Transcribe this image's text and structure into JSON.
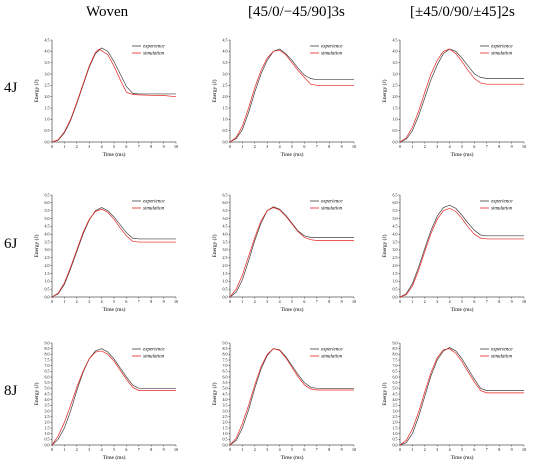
{
  "column_titles": [
    "Woven",
    "[45/0/−45/90]3s",
    "[±45/0/90/±45]2s"
  ],
  "row_labels": [
    "4J",
    "6J",
    "8J"
  ],
  "colors": {
    "experience": "#404040",
    "simulation": "#e8231f",
    "axis": "#000000"
  },
  "chart_data": [
    {
      "type": "line",
      "row": "4J",
      "column": "Woven",
      "xlabel": "Time (ms)",
      "ylabel": "Energy (J)",
      "xlim": [
        0,
        10
      ],
      "ylim": [
        0,
        4.5
      ],
      "xticks": [
        0,
        1,
        2,
        3,
        4,
        5,
        6,
        7,
        8,
        9,
        10
      ],
      "yticks": [
        0,
        0.5,
        1.0,
        1.5,
        2.0,
        2.5,
        3.0,
        3.5,
        4.0,
        4.5
      ],
      "series": [
        {
          "name": "experience",
          "x": [
            0,
            0.5,
            1,
            1.5,
            2,
            2.5,
            3,
            3.5,
            4,
            4.5,
            5,
            5.5,
            6,
            6.5,
            7,
            8,
            9,
            10
          ],
          "y": [
            0,
            0.08,
            0.4,
            0.95,
            1.7,
            2.5,
            3.3,
            3.9,
            4.15,
            4.0,
            3.55,
            3.0,
            2.45,
            2.15,
            2.12,
            2.12,
            2.12,
            2.12
          ]
        },
        {
          "name": "simulation",
          "x": [
            0,
            0.5,
            1,
            1.5,
            2,
            2.5,
            3,
            3.5,
            3.8,
            4.5,
            5,
            5.5,
            6,
            6.5,
            7,
            8,
            9,
            10
          ],
          "y": [
            0,
            0.1,
            0.45,
            1.0,
            1.75,
            2.55,
            3.35,
            3.95,
            4.1,
            3.85,
            3.35,
            2.75,
            2.2,
            2.1,
            2.08,
            2.06,
            2.05,
            2.0
          ]
        }
      ]
    },
    {
      "type": "line",
      "row": "4J",
      "column": "[45/0/−45/90]3s",
      "xlabel": "Time (ms)",
      "ylabel": "Energy (J)",
      "xlim": [
        0,
        10
      ],
      "ylim": [
        0,
        4.5
      ],
      "xticks": [
        0,
        1,
        2,
        3,
        4,
        5,
        6,
        7,
        8,
        9,
        10
      ],
      "yticks": [
        0,
        0.5,
        1.0,
        1.5,
        2.0,
        2.5,
        3.0,
        3.5,
        4.0,
        4.5
      ],
      "series": [
        {
          "name": "experience",
          "x": [
            0,
            0.5,
            1,
            1.5,
            2,
            2.5,
            3,
            3.5,
            4,
            4.5,
            5,
            5.5,
            6,
            6.5,
            7,
            8,
            9,
            10
          ],
          "y": [
            0,
            0.15,
            0.55,
            1.3,
            2.2,
            3.0,
            3.6,
            4.0,
            4.1,
            3.9,
            3.6,
            3.25,
            2.95,
            2.8,
            2.75,
            2.75,
            2.75,
            2.75
          ]
        },
        {
          "name": "simulation",
          "x": [
            0,
            0.5,
            1,
            1.5,
            2,
            2.5,
            3,
            3.5,
            4,
            4.5,
            5,
            5.5,
            6,
            6.5,
            7,
            8,
            9,
            10
          ],
          "y": [
            0,
            0.2,
            0.7,
            1.5,
            2.4,
            3.15,
            3.7,
            4.0,
            4.05,
            3.85,
            3.5,
            3.15,
            2.85,
            2.55,
            2.5,
            2.5,
            2.5,
            2.5
          ]
        }
      ]
    },
    {
      "type": "line",
      "row": "4J",
      "column": "[±45/0/90/±45]2s",
      "xlabel": "Time (ms)",
      "ylabel": "Energy (J)",
      "xlim": [
        0,
        10
      ],
      "ylim": [
        0,
        4.5
      ],
      "xticks": [
        0,
        1,
        2,
        3,
        4,
        5,
        6,
        7,
        8,
        9,
        10
      ],
      "yticks": [
        0,
        0.5,
        1.0,
        1.5,
        2.0,
        2.5,
        3.0,
        3.5,
        4.0,
        4.5
      ],
      "series": [
        {
          "name": "experience",
          "x": [
            0,
            0.5,
            1,
            1.5,
            2,
            2.5,
            3,
            3.5,
            4,
            4.5,
            5,
            5.5,
            6,
            6.5,
            7,
            8,
            9,
            10
          ],
          "y": [
            0,
            0.12,
            0.5,
            1.15,
            1.95,
            2.75,
            3.4,
            3.9,
            4.1,
            4.0,
            3.7,
            3.35,
            3.0,
            2.85,
            2.8,
            2.8,
            2.8,
            2.8
          ]
        },
        {
          "name": "simulation",
          "x": [
            0,
            0.5,
            1,
            1.5,
            2,
            2.5,
            3,
            3.5,
            4,
            4.5,
            5,
            5.5,
            6,
            6.5,
            7,
            8,
            9,
            10
          ],
          "y": [
            0,
            0.18,
            0.65,
            1.35,
            2.2,
            3.0,
            3.6,
            4.0,
            4.1,
            3.9,
            3.55,
            3.15,
            2.8,
            2.6,
            2.55,
            2.55,
            2.55,
            2.55
          ]
        }
      ]
    },
    {
      "type": "line",
      "row": "6J",
      "column": "Woven",
      "xlabel": "Time (ms)",
      "ylabel": "Energy (J)",
      "xlim": [
        0,
        10
      ],
      "ylim": [
        0,
        6.5
      ],
      "xticks": [
        0,
        1,
        2,
        3,
        4,
        5,
        6,
        7,
        8,
        9,
        10
      ],
      "yticks": [
        0,
        0.5,
        1.0,
        1.5,
        2.0,
        2.5,
        3.0,
        3.5,
        4.0,
        4.5,
        5.0,
        5.5,
        6.0,
        6.5
      ],
      "series": [
        {
          "name": "experience",
          "x": [
            0,
            0.5,
            1,
            1.5,
            2,
            2.5,
            3,
            3.5,
            4,
            4.5,
            5,
            5.5,
            6,
            6.5,
            7,
            8,
            9,
            10
          ],
          "y": [
            0,
            0.2,
            0.8,
            1.8,
            2.9,
            4.0,
            4.9,
            5.5,
            5.7,
            5.5,
            5.1,
            4.6,
            4.1,
            3.75,
            3.7,
            3.7,
            3.7,
            3.7
          ]
        },
        {
          "name": "simulation",
          "x": [
            0,
            0.5,
            1,
            1.5,
            2,
            2.5,
            3,
            3.5,
            4,
            4.5,
            5,
            5.5,
            6,
            6.5,
            7,
            8,
            9,
            10
          ],
          "y": [
            0,
            0.25,
            0.9,
            1.9,
            3.0,
            4.1,
            4.95,
            5.45,
            5.6,
            5.4,
            4.95,
            4.4,
            3.9,
            3.55,
            3.5,
            3.5,
            3.5,
            3.5
          ]
        }
      ]
    },
    {
      "type": "line",
      "row": "6J",
      "column": "[45/0/−45/90]3s",
      "xlabel": "Time (ms)",
      "ylabel": "Energy (J)",
      "xlim": [
        0,
        10
      ],
      "ylim": [
        0,
        6.5
      ],
      "xticks": [
        0,
        1,
        2,
        3,
        4,
        5,
        6,
        7,
        8,
        9,
        10
      ],
      "yticks": [
        0,
        0.5,
        1.0,
        1.5,
        2.0,
        2.5,
        3.0,
        3.5,
        4.0,
        4.5,
        5.0,
        5.5,
        6.0,
        6.5
      ],
      "series": [
        {
          "name": "experience",
          "x": [
            0,
            0.5,
            1,
            1.5,
            2,
            2.5,
            3,
            3.5,
            4,
            4.5,
            5,
            5.5,
            6,
            6.5,
            7,
            8,
            9,
            10
          ],
          "y": [
            0,
            0.3,
            1.1,
            2.3,
            3.6,
            4.7,
            5.5,
            5.75,
            5.6,
            5.2,
            4.7,
            4.2,
            3.9,
            3.8,
            3.8,
            3.8,
            3.8,
            3.8
          ]
        },
        {
          "name": "simulation",
          "x": [
            0,
            0.5,
            1,
            1.5,
            2,
            2.5,
            3,
            3.5,
            4,
            4.5,
            5,
            5.5,
            6,
            6.5,
            7,
            8,
            9,
            10
          ],
          "y": [
            0,
            0.5,
            1.4,
            2.6,
            3.8,
            4.85,
            5.5,
            5.7,
            5.55,
            5.15,
            4.65,
            4.15,
            3.8,
            3.65,
            3.6,
            3.6,
            3.6,
            3.6
          ]
        }
      ]
    },
    {
      "type": "line",
      "row": "6J",
      "column": "[±45/0/90/±45]2s",
      "xlabel": "Time (ms)",
      "ylabel": "Energy (J)",
      "xlim": [
        0,
        10
      ],
      "ylim": [
        0,
        6.5
      ],
      "xticks": [
        0,
        1,
        2,
        3,
        4,
        5,
        6,
        7,
        8,
        9,
        10
      ],
      "yticks": [
        0,
        0.5,
        1.0,
        1.5,
        2.0,
        2.5,
        3.0,
        3.5,
        4.0,
        4.5,
        5.0,
        5.5,
        6.0,
        6.5
      ],
      "series": [
        {
          "name": "experience",
          "x": [
            0,
            0.5,
            1,
            1.5,
            2,
            2.5,
            3,
            3.5,
            4,
            4.5,
            5,
            5.5,
            6,
            6.5,
            7,
            8,
            9,
            10
          ],
          "y": [
            0,
            0.2,
            0.85,
            1.9,
            3.1,
            4.25,
            5.15,
            5.7,
            5.85,
            5.65,
            5.2,
            4.7,
            4.25,
            3.95,
            3.9,
            3.9,
            3.9,
            3.9
          ]
        },
        {
          "name": "simulation",
          "x": [
            0,
            0.5,
            1,
            1.5,
            2,
            2.5,
            3,
            3.5,
            4,
            4.5,
            5,
            5.5,
            6,
            6.5,
            7,
            8,
            9,
            10
          ],
          "y": [
            0,
            0.15,
            0.7,
            1.7,
            2.9,
            4.05,
            4.95,
            5.5,
            5.65,
            5.45,
            5.0,
            4.45,
            4.0,
            3.75,
            3.7,
            3.7,
            3.7,
            3.7
          ]
        }
      ]
    },
    {
      "type": "line",
      "row": "8J",
      "column": "Woven",
      "xlabel": "Time (ms)",
      "ylabel": "Energy (J)",
      "xlim": [
        0,
        10
      ],
      "ylim": [
        0,
        9.0
      ],
      "xticks": [
        0,
        1,
        2,
        3,
        4,
        5,
        6,
        7,
        8,
        9,
        10
      ],
      "yticks": [
        0,
        0.5,
        1.0,
        1.5,
        2.0,
        2.5,
        3.0,
        3.5,
        4.0,
        4.5,
        5.0,
        5.5,
        6.0,
        6.5,
        7.0,
        7.5,
        8.0,
        8.5,
        9.0
      ],
      "series": [
        {
          "name": "experience",
          "x": [
            0,
            0.5,
            1,
            1.5,
            2,
            2.5,
            3,
            3.5,
            4,
            4.5,
            5,
            5.5,
            6,
            6.5,
            7,
            8,
            9,
            10
          ],
          "y": [
            0,
            0.5,
            1.5,
            3.0,
            4.8,
            6.4,
            7.6,
            8.3,
            8.5,
            8.2,
            7.6,
            6.8,
            6.0,
            5.3,
            5.0,
            5.0,
            5.0,
            5.0
          ]
        },
        {
          "name": "simulation",
          "x": [
            0,
            0.5,
            1,
            1.5,
            2,
            2.5,
            3,
            3.5,
            4,
            4.5,
            5,
            5.5,
            6,
            6.5,
            7,
            8,
            9,
            10
          ],
          "y": [
            0,
            0.8,
            2.0,
            3.5,
            5.1,
            6.5,
            7.6,
            8.2,
            8.3,
            8.0,
            7.4,
            6.6,
            5.8,
            5.1,
            4.8,
            4.8,
            4.8,
            4.8
          ]
        }
      ]
    },
    {
      "type": "line",
      "row": "8J",
      "column": "[45/0/−45/90]3s",
      "xlabel": "Time (ms)",
      "ylabel": "Energy (J)",
      "xlim": [
        0,
        10
      ],
      "ylim": [
        0,
        9.0
      ],
      "xticks": [
        0,
        1,
        2,
        3,
        4,
        5,
        6,
        7,
        8,
        9,
        10
      ],
      "yticks": [
        0,
        0.5,
        1.0,
        1.5,
        2.0,
        2.5,
        3.0,
        3.5,
        4.0,
        4.5,
        5.0,
        5.5,
        6.0,
        6.5,
        7.0,
        7.5,
        8.0,
        8.5,
        9.0
      ],
      "series": [
        {
          "name": "experience",
          "x": [
            0,
            0.5,
            1,
            1.5,
            2,
            2.5,
            3,
            3.5,
            4,
            4.5,
            5,
            5.5,
            6,
            6.5,
            7,
            8,
            9,
            10
          ],
          "y": [
            0,
            0.4,
            1.5,
            3.1,
            5.0,
            6.7,
            7.9,
            8.5,
            8.4,
            7.8,
            7.0,
            6.2,
            5.5,
            5.1,
            5.0,
            5.0,
            5.0,
            5.0
          ]
        },
        {
          "name": "simulation",
          "x": [
            0,
            0.5,
            1,
            1.5,
            2,
            2.5,
            3,
            3.5,
            4,
            4.5,
            5,
            5.5,
            6,
            6.5,
            7,
            8,
            9,
            10
          ],
          "y": [
            0,
            0.6,
            1.9,
            3.5,
            5.3,
            6.9,
            8.0,
            8.5,
            8.35,
            7.7,
            6.85,
            6.0,
            5.3,
            4.95,
            4.85,
            4.85,
            4.85,
            4.85
          ]
        }
      ]
    },
    {
      "type": "line",
      "row": "8J",
      "column": "[±45/0/90/±45]2s",
      "xlabel": "Time (ms)",
      "ylabel": "Energy (J)",
      "xlim": [
        0,
        10
      ],
      "ylim": [
        0,
        9.0
      ],
      "xticks": [
        0,
        1,
        2,
        3,
        4,
        5,
        6,
        7,
        8,
        9,
        10
      ],
      "yticks": [
        0,
        0.5,
        1.0,
        1.5,
        2.0,
        2.5,
        3.0,
        3.5,
        4.0,
        4.5,
        5.0,
        5.5,
        6.0,
        6.5,
        7.0,
        7.5,
        8.0,
        8.5,
        9.0
      ],
      "series": [
        {
          "name": "experience",
          "x": [
            0,
            0.5,
            1,
            1.5,
            2,
            2.5,
            3,
            3.5,
            4,
            4.5,
            5,
            5.5,
            6,
            6.5,
            7,
            8,
            9,
            10
          ],
          "y": [
            0,
            0.2,
            1.0,
            2.5,
            4.3,
            6.1,
            7.5,
            8.3,
            8.6,
            8.3,
            7.6,
            6.7,
            5.8,
            5.0,
            4.8,
            4.8,
            4.8,
            4.8
          ]
        },
        {
          "name": "simulation",
          "x": [
            0,
            0.5,
            1,
            1.5,
            2,
            2.5,
            3,
            3.5,
            4,
            4.5,
            5,
            5.5,
            6,
            6.5,
            7,
            8,
            9,
            10
          ],
          "y": [
            0,
            0.4,
            1.4,
            2.9,
            4.7,
            6.4,
            7.7,
            8.4,
            8.5,
            8.1,
            7.35,
            6.45,
            5.55,
            4.8,
            4.6,
            4.6,
            4.6,
            4.6
          ]
        }
      ]
    }
  ]
}
